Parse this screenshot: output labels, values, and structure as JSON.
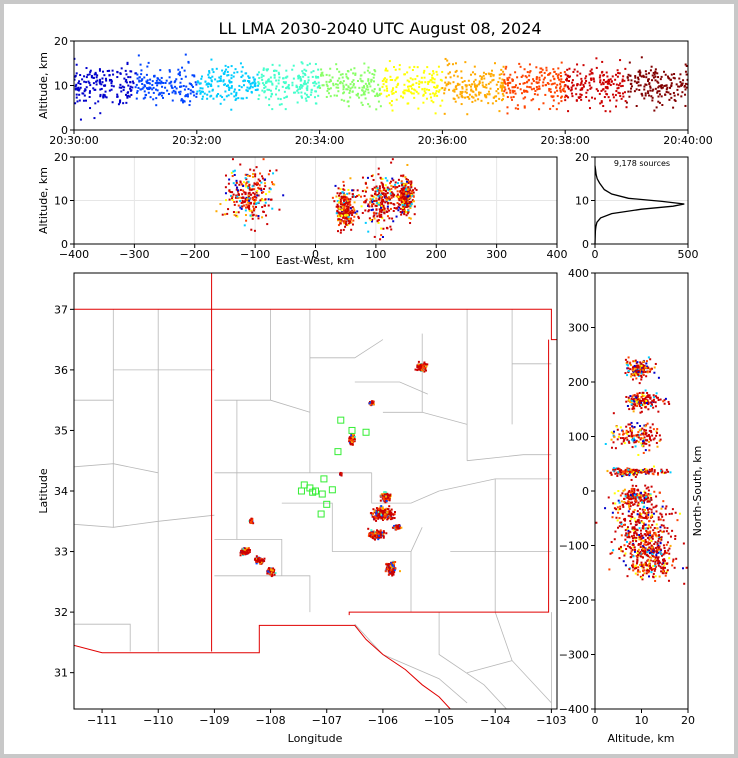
{
  "chart_data": {
    "type": "scatter",
    "title": "LL LMA 2030-2040 UTC August 08, 2024",
    "colormap": [
      "#0000cc",
      "#0044ff",
      "#00ccff",
      "#44ffcc",
      "#88ff66",
      "#ffff00",
      "#ffaa00",
      "#ff4400",
      "#cc0000",
      "#800000"
    ],
    "panels": [
      {
        "id": "time-altitude",
        "ylabel": "Altitude, km",
        "xlabel": "",
        "ylim": [
          0,
          20
        ],
        "yticks": [
          "0",
          "10",
          "20"
        ],
        "xticks": [
          "20:30:00",
          "20:32:00",
          "20:34:00",
          "20:36:00",
          "20:38:00",
          "20:40:00"
        ],
        "point_alt_range_km": [
          3,
          18
        ],
        "point_alt_median_km": 10
      },
      {
        "id": "eastwest-altitude",
        "ylabel": "Altitude, km",
        "xlabel": "East-West, km",
        "xlim": [
          -400,
          400
        ],
        "ylim": [
          0,
          20
        ],
        "xticks": [
          "−400",
          "−300",
          "−200",
          "−100",
          "0",
          "100",
          "200",
          "300",
          "400"
        ],
        "yticks": [
          "0",
          "10",
          "20"
        ],
        "clusters": [
          {
            "x_center": -110,
            "x_spread": 18,
            "y_center": 11,
            "y_spread": 3
          },
          {
            "x_center": 50,
            "x_spread": 8,
            "y_center": 8,
            "y_spread": 2.5
          },
          {
            "x_center": 110,
            "x_spread": 15,
            "y_center": 10,
            "y_spread": 3
          },
          {
            "x_center": 150,
            "x_spread": 6,
            "y_center": 11,
            "y_spread": 2
          }
        ]
      },
      {
        "id": "altitude-histogram",
        "annotation": "9,178 sources",
        "xlim": [
          0,
          500
        ],
        "ylim": [
          0,
          20
        ],
        "xticks": [
          "0",
          "500"
        ],
        "yticks": [
          "0",
          "10",
          "20"
        ],
        "profile": [
          {
            "alt": 0,
            "count": 0
          },
          {
            "alt": 3,
            "count": 2
          },
          {
            "alt": 4,
            "count": 5
          },
          {
            "alt": 5,
            "count": 10
          },
          {
            "alt": 6,
            "count": 30
          },
          {
            "alt": 7,
            "count": 90
          },
          {
            "alt": 8,
            "count": 250
          },
          {
            "alt": 8.7,
            "count": 420
          },
          {
            "alt": 9.2,
            "count": 480
          },
          {
            "alt": 9.8,
            "count": 360
          },
          {
            "alt": 10.5,
            "count": 180
          },
          {
            "alt": 11.5,
            "count": 90
          },
          {
            "alt": 12.5,
            "count": 50
          },
          {
            "alt": 14,
            "count": 25
          },
          {
            "alt": 15,
            "count": 12
          },
          {
            "alt": 16,
            "count": 6
          },
          {
            "alt": 17,
            "count": 3
          },
          {
            "alt": 18,
            "count": 0
          }
        ]
      },
      {
        "id": "plan-view-map",
        "xlabel": "Longitude",
        "ylabel": "Latitude",
        "xlim": [
          -111.5,
          -102.9
        ],
        "ylim": [
          30.4,
          37.6
        ],
        "xticks": [
          "−111",
          "−110",
          "−109",
          "−108",
          "−107",
          "−106",
          "−105",
          "−104",
          "−103"
        ],
        "yticks": [
          "31",
          "32",
          "33",
          "34",
          "35",
          "36",
          "37"
        ],
        "clusters": [
          {
            "lon": -106.0,
            "lat": 33.62,
            "spread_lon": 0.15,
            "spread_lat": 0.08
          },
          {
            "lon": -106.12,
            "lat": 33.28,
            "spread_lon": 0.1,
            "spread_lat": 0.05
          },
          {
            "lon": -105.95,
            "lat": 33.9,
            "spread_lon": 0.06,
            "spread_lat": 0.05
          },
          {
            "lon": -105.85,
            "lat": 32.72,
            "spread_lon": 0.06,
            "spread_lat": 0.08
          },
          {
            "lon": -106.55,
            "lat": 34.85,
            "spread_lon": 0.04,
            "spread_lat": 0.06
          },
          {
            "lon": -106.75,
            "lat": 34.28,
            "spread_lon": 0.02,
            "spread_lat": 0.02
          },
          {
            "lon": -108.45,
            "lat": 33.0,
            "spread_lon": 0.06,
            "spread_lat": 0.05
          },
          {
            "lon": -108.0,
            "lat": 32.67,
            "spread_lon": 0.05,
            "spread_lat": 0.05
          },
          {
            "lon": -108.2,
            "lat": 32.85,
            "spread_lon": 0.06,
            "spread_lat": 0.04
          },
          {
            "lon": -108.35,
            "lat": 33.5,
            "spread_lon": 0.03,
            "spread_lat": 0.03
          },
          {
            "lon": -106.2,
            "lat": 35.45,
            "spread_lon": 0.03,
            "spread_lat": 0.03
          },
          {
            "lon": -105.75,
            "lat": 33.4,
            "spread_lon": 0.05,
            "spread_lat": 0.03
          },
          {
            "lon": -105.3,
            "lat": 36.05,
            "spread_lon": 0.06,
            "spread_lat": 0.05
          }
        ],
        "stations": [
          {
            "lon": -107.3,
            "lat": 34.05
          },
          {
            "lon": -107.45,
            "lat": 34.0
          },
          {
            "lon": -107.2,
            "lat": 34.0
          },
          {
            "lon": -107.05,
            "lat": 34.2
          },
          {
            "lon": -107.08,
            "lat": 33.95
          },
          {
            "lon": -107.0,
            "lat": 33.78
          },
          {
            "lon": -107.1,
            "lat": 33.62
          },
          {
            "lon": -106.8,
            "lat": 34.65
          },
          {
            "lon": -106.3,
            "lat": 34.97
          },
          {
            "lon": -106.75,
            "lat": 35.17
          },
          {
            "lon": -107.4,
            "lat": 34.1
          },
          {
            "lon": -106.9,
            "lat": 34.02
          },
          {
            "lon": -106.55,
            "lat": 35.0
          },
          {
            "lon": -107.25,
            "lat": 33.98
          }
        ]
      },
      {
        "id": "altitude-northsouth",
        "xlabel": "Altitude, km",
        "ylabel": "North-South, km",
        "xlim": [
          0,
          20
        ],
        "ylim": [
          -400,
          400
        ],
        "xticks": [
          "0",
          "10",
          "20"
        ],
        "yticks": [
          "−400",
          "−300",
          "−200",
          "−100",
          "0",
          "100",
          "200",
          "300",
          "400"
        ],
        "clusters": [
          {
            "y_center": 225,
            "y_spread": 8,
            "x_center": 9.5,
            "x_spread": 1.5
          },
          {
            "y_center": 165,
            "y_spread": 8,
            "x_center": 10,
            "x_spread": 2
          },
          {
            "y_center": 100,
            "y_spread": 12,
            "x_center": 9,
            "x_spread": 2.5
          },
          {
            "y_center": 35,
            "y_spread": 3,
            "x_center": 8.5,
            "x_spread": 3
          },
          {
            "y_center": -10,
            "y_spread": 8,
            "x_center": 9,
            "x_spread": 2
          },
          {
            "y_center": -45,
            "y_spread": 15,
            "x_center": 10,
            "x_spread": 3.5
          },
          {
            "y_center": -80,
            "y_spread": 12,
            "x_center": 10.5,
            "x_spread": 3
          },
          {
            "y_center": -110,
            "y_spread": 8,
            "x_center": 11,
            "x_spread": 2.5
          },
          {
            "y_center": -140,
            "y_spread": 10,
            "x_center": 11.5,
            "x_spread": 3
          }
        ]
      }
    ]
  }
}
